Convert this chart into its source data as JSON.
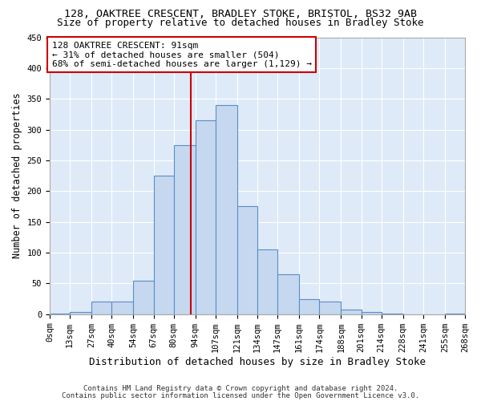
{
  "title1": "128, OAKTREE CRESCENT, BRADLEY STOKE, BRISTOL, BS32 9AB",
  "title2": "Size of property relative to detached houses in Bradley Stoke",
  "xlabel": "Distribution of detached houses by size in Bradley Stoke",
  "ylabel": "Number of detached properties",
  "footnote1": "Contains HM Land Registry data © Crown copyright and database right 2024.",
  "footnote2": "Contains public sector information licensed under the Open Government Licence v3.0.",
  "annotation_line1": "128 OAKTREE CRESCENT: 91sqm",
  "annotation_line2": "← 31% of detached houses are smaller (504)",
  "annotation_line3": "68% of semi-detached houses are larger (1,129) →",
  "property_size": 91,
  "bar_edges": [
    0,
    13,
    27,
    40,
    54,
    67,
    80,
    94,
    107,
    121,
    134,
    147,
    161,
    174,
    188,
    201,
    214,
    228,
    241,
    255,
    268
  ],
  "bar_heights": [
    1,
    3,
    20,
    20,
    55,
    225,
    275,
    315,
    340,
    175,
    105,
    65,
    25,
    20,
    8,
    3,
    1,
    0,
    0,
    1
  ],
  "bar_color": "#c5d8f0",
  "bar_edge_color": "#5b8ec4",
  "fig_bg_color": "#ffffff",
  "plot_bg_color": "#deeaf8",
  "grid_color": "#ffffff",
  "annotation_box_color": "#cc0000",
  "vline_color": "#cc0000",
  "ylim": [
    0,
    450
  ],
  "yticks": [
    0,
    50,
    100,
    150,
    200,
    250,
    300,
    350,
    400,
    450
  ],
  "title1_fontsize": 9.5,
  "title2_fontsize": 9.0,
  "xlabel_fontsize": 9.0,
  "ylabel_fontsize": 8.5,
  "tick_fontsize": 7.5,
  "annot_fontsize": 8.0,
  "footnote_fontsize": 6.5
}
